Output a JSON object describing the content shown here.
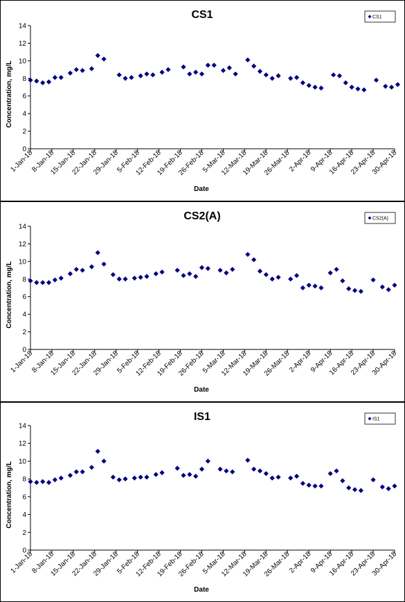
{
  "chart_data": [
    {
      "type": "scatter",
      "title": "CS1",
      "xlabel": "Date",
      "ylabel": "Concentration, mg/L",
      "ylim": [
        0,
        14
      ],
      "yticks": [
        0,
        2,
        4,
        6,
        8,
        10,
        12,
        14
      ],
      "xlim": [
        "2018-01-01",
        "2018-04-30"
      ],
      "xticks": [
        "1-Jan-18",
        "8-Jan-18",
        "15-Jan-18",
        "22-Jan-18",
        "29-Jan-18",
        "5-Feb-18",
        "12-Feb-18",
        "19-Feb-18",
        "26-Feb-18",
        "5-Mar-18",
        "12-Mar-18",
        "19-Mar-18",
        "26-Mar-18",
        "2-Apr-18",
        "9-Apr-18",
        "16-Apr-18",
        "23-Apr-18",
        "30-Apr-18"
      ],
      "grid": false,
      "legend_position": "top-right",
      "color": "#000080",
      "series": [
        {
          "name": "CS1",
          "x": [
            "2018-01-01",
            "2018-01-03",
            "2018-01-05",
            "2018-01-07",
            "2018-01-09",
            "2018-01-11",
            "2018-01-14",
            "2018-01-16",
            "2018-01-18",
            "2018-01-21",
            "2018-01-23",
            "2018-01-25",
            "2018-01-30",
            "2018-02-01",
            "2018-02-03",
            "2018-02-06",
            "2018-02-08",
            "2018-02-10",
            "2018-02-13",
            "2018-02-15",
            "2018-02-20",
            "2018-02-22",
            "2018-02-24",
            "2018-02-26",
            "2018-02-28",
            "2018-03-02",
            "2018-03-05",
            "2018-03-07",
            "2018-03-09",
            "2018-03-13",
            "2018-03-15",
            "2018-03-17",
            "2018-03-19",
            "2018-03-21",
            "2018-03-23",
            "2018-03-27",
            "2018-03-29",
            "2018-03-31",
            "2018-04-02",
            "2018-04-04",
            "2018-04-06",
            "2018-04-10",
            "2018-04-12",
            "2018-04-14",
            "2018-04-16",
            "2018-04-18",
            "2018-04-20",
            "2018-04-24",
            "2018-04-27",
            "2018-04-29",
            "2018-05-01"
          ],
          "y": [
            7.8,
            7.7,
            7.5,
            7.6,
            8.1,
            8.1,
            8.6,
            9.0,
            8.9,
            9.1,
            10.6,
            10.2,
            8.4,
            8.0,
            8.1,
            8.3,
            8.5,
            8.4,
            8.7,
            9.0,
            9.3,
            8.5,
            8.7,
            8.5,
            9.5,
            9.5,
            8.9,
            9.2,
            8.5,
            10.1,
            9.4,
            8.8,
            8.4,
            8.0,
            8.3,
            8.0,
            8.1,
            7.5,
            7.2,
            7.0,
            6.9,
            8.4,
            8.3,
            7.5,
            7.0,
            6.8,
            6.7,
            7.8,
            7.1,
            7.0,
            7.3
          ]
        }
      ]
    },
    {
      "type": "scatter",
      "title": "CS2(A)",
      "xlabel": "Date",
      "ylabel": "Concentration, mg/L",
      "ylim": [
        0,
        14
      ],
      "yticks": [
        0,
        2,
        4,
        6,
        8,
        10,
        12,
        14
      ],
      "xlim": [
        "2018-01-01",
        "2018-04-30"
      ],
      "xticks": [
        "1-Jan-18",
        "8-Jan-18",
        "15-Jan-18",
        "22-Jan-18",
        "29-Jan-18",
        "5-Feb-18",
        "12-Feb-18",
        "19-Feb-18",
        "26-Feb-18",
        "5-Mar-18",
        "12-Mar-18",
        "19-Mar-18",
        "26-Mar-18",
        "2-Apr-18",
        "9-Apr-18",
        "16-Apr-18",
        "23-Apr-18",
        "30-Apr-18"
      ],
      "grid": false,
      "legend_position": "top-right",
      "color": "#000080",
      "series": [
        {
          "name": "CS2(A)",
          "x": [
            "2018-01-01",
            "2018-01-03",
            "2018-01-05",
            "2018-01-07",
            "2018-01-09",
            "2018-01-11",
            "2018-01-14",
            "2018-01-16",
            "2018-01-18",
            "2018-01-21",
            "2018-01-23",
            "2018-01-25",
            "2018-01-28",
            "2018-01-30",
            "2018-02-01",
            "2018-02-04",
            "2018-02-06",
            "2018-02-08",
            "2018-02-11",
            "2018-02-13",
            "2018-02-18",
            "2018-02-20",
            "2018-02-22",
            "2018-02-24",
            "2018-02-26",
            "2018-02-28",
            "2018-03-04",
            "2018-03-06",
            "2018-03-08",
            "2018-03-13",
            "2018-03-15",
            "2018-03-17",
            "2018-03-19",
            "2018-03-21",
            "2018-03-23",
            "2018-03-27",
            "2018-03-29",
            "2018-03-31",
            "2018-04-02",
            "2018-04-04",
            "2018-04-06",
            "2018-04-09",
            "2018-04-11",
            "2018-04-13",
            "2018-04-15",
            "2018-04-17",
            "2018-04-19",
            "2018-04-23",
            "2018-04-26",
            "2018-04-28",
            "2018-04-30"
          ],
          "y": [
            7.8,
            7.6,
            7.6,
            7.6,
            7.9,
            8.1,
            8.6,
            9.1,
            9.0,
            9.4,
            11.0,
            9.7,
            8.5,
            8.0,
            8.0,
            8.1,
            8.2,
            8.3,
            8.6,
            8.8,
            9.0,
            8.4,
            8.6,
            8.3,
            9.3,
            9.2,
            9.0,
            8.7,
            9.1,
            10.8,
            10.2,
            8.9,
            8.5,
            8.0,
            8.2,
            8.0,
            8.4,
            7.0,
            7.3,
            7.2,
            7.0,
            8.7,
            9.1,
            7.8,
            6.9,
            6.7,
            6.6,
            7.9,
            7.1,
            6.8,
            7.3
          ]
        }
      ]
    },
    {
      "type": "scatter",
      "title": "IS1",
      "xlabel": "Date",
      "ylabel": "Concentration, mg/L",
      "ylim": [
        0,
        14
      ],
      "yticks": [
        0,
        2,
        4,
        6,
        8,
        10,
        12,
        14
      ],
      "xlim": [
        "2018-01-01",
        "2018-04-30"
      ],
      "xticks": [
        "1-Jan-18",
        "8-Jan-18",
        "15-Jan-18",
        "22-Jan-18",
        "29-Jan-18",
        "5-Feb-18",
        "12-Feb-18",
        "19-Feb-18",
        "26-Feb-18",
        "5-Mar-18",
        "12-Mar-18",
        "19-Mar-18",
        "26-Mar-18",
        "2-Apr-18",
        "9-Apr-18",
        "16-Apr-18",
        "23-Apr-18",
        "30-Apr-18"
      ],
      "grid": false,
      "legend_position": "top-right",
      "color": "#000080",
      "series": [
        {
          "name": "IS1",
          "x": [
            "2018-01-01",
            "2018-01-03",
            "2018-01-05",
            "2018-01-07",
            "2018-01-09",
            "2018-01-11",
            "2018-01-14",
            "2018-01-16",
            "2018-01-18",
            "2018-01-21",
            "2018-01-23",
            "2018-01-25",
            "2018-01-28",
            "2018-01-30",
            "2018-02-01",
            "2018-02-04",
            "2018-02-06",
            "2018-02-08",
            "2018-02-11",
            "2018-02-13",
            "2018-02-18",
            "2018-02-20",
            "2018-02-22",
            "2018-02-24",
            "2018-02-26",
            "2018-02-28",
            "2018-03-04",
            "2018-03-06",
            "2018-03-08",
            "2018-03-13",
            "2018-03-15",
            "2018-03-17",
            "2018-03-19",
            "2018-03-21",
            "2018-03-23",
            "2018-03-27",
            "2018-03-29",
            "2018-03-31",
            "2018-04-02",
            "2018-04-04",
            "2018-04-06",
            "2018-04-09",
            "2018-04-11",
            "2018-04-13",
            "2018-04-15",
            "2018-04-17",
            "2018-04-19",
            "2018-04-23",
            "2018-04-26",
            "2018-04-28",
            "2018-04-30"
          ],
          "y": [
            7.7,
            7.6,
            7.7,
            7.6,
            7.9,
            8.1,
            8.4,
            8.8,
            8.8,
            9.3,
            11.1,
            10.0,
            8.2,
            7.9,
            8.0,
            8.1,
            8.2,
            8.2,
            8.5,
            8.7,
            9.2,
            8.4,
            8.5,
            8.3,
            9.1,
            10.0,
            9.1,
            8.9,
            8.8,
            10.1,
            9.1,
            8.9,
            8.6,
            8.1,
            8.2,
            8.1,
            8.3,
            7.5,
            7.3,
            7.2,
            7.2,
            8.6,
            8.9,
            7.8,
            7.0,
            6.8,
            6.7,
            7.9,
            7.1,
            6.9,
            7.2
          ]
        }
      ]
    }
  ]
}
